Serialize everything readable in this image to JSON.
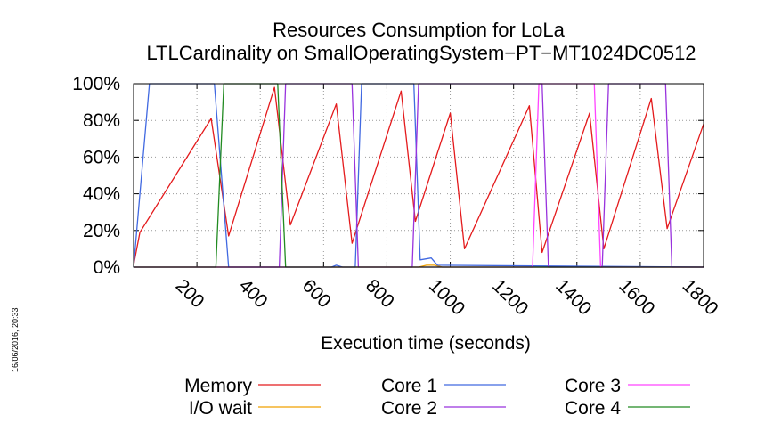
{
  "timestamp": "16/06/2016, 20:33",
  "chart_data": {
    "type": "line",
    "title": "Resources Consumption for LoLa",
    "subtitle": "LTLCardinality on SmallOperatingSystem−PT−MT1024DC0512",
    "xlabel": "Execution time (seconds)",
    "ylabel": "",
    "xlim": [
      0,
      1800
    ],
    "ylim": [
      0,
      100
    ],
    "x_ticks": [
      200,
      400,
      600,
      800,
      1000,
      1200,
      1400,
      1600,
      1800
    ],
    "y_ticks": [
      0,
      20,
      40,
      60,
      80,
      100
    ],
    "y_tick_labels": [
      "0%",
      "20%",
      "40%",
      "60%",
      "80%",
      "100%"
    ],
    "grid": true,
    "legend_position": "bottom",
    "series": [
      {
        "name": "Memory",
        "color": "#e41a1c",
        "points": [
          [
            0,
            1
          ],
          [
            20,
            19
          ],
          [
            245,
            81
          ],
          [
            300,
            17
          ],
          [
            445,
            98
          ],
          [
            495,
            23
          ],
          [
            640,
            89
          ],
          [
            690,
            13
          ],
          [
            845,
            96
          ],
          [
            890,
            25
          ],
          [
            1000,
            84
          ],
          [
            1045,
            10
          ],
          [
            1250,
            88
          ],
          [
            1290,
            8
          ],
          [
            1440,
            84
          ],
          [
            1485,
            10
          ],
          [
            1635,
            92
          ],
          [
            1685,
            21
          ],
          [
            1800,
            78
          ]
        ]
      },
      {
        "name": "I/O wait",
        "color": "#f0a000",
        "points": [
          [
            0,
            0
          ],
          [
            900,
            0
          ],
          [
            925,
            1
          ],
          [
            950,
            1
          ],
          [
            975,
            0
          ],
          [
            1800,
            0
          ]
        ]
      },
      {
        "name": "Core 1",
        "color": "#4169e1",
        "points": [
          [
            0,
            0
          ],
          [
            50,
            100
          ],
          [
            255,
            100
          ],
          [
            300,
            0
          ],
          [
            625,
            0
          ],
          [
            640,
            1
          ],
          [
            660,
            0
          ],
          [
            700,
            0
          ],
          [
            720,
            100
          ],
          [
            885,
            100
          ],
          [
            905,
            4
          ],
          [
            940,
            5
          ],
          [
            960,
            1
          ],
          [
            1800,
            0
          ]
        ]
      },
      {
        "name": "Core 2",
        "color": "#9933dd",
        "points": [
          [
            0,
            0
          ],
          [
            460,
            0
          ],
          [
            480,
            100
          ],
          [
            690,
            100
          ],
          [
            710,
            0
          ],
          [
            880,
            0
          ],
          [
            900,
            100
          ],
          [
            1290,
            100
          ],
          [
            1310,
            0
          ],
          [
            1480,
            0
          ],
          [
            1500,
            100
          ],
          [
            1680,
            100
          ],
          [
            1700,
            0
          ],
          [
            1800,
            0
          ]
        ]
      },
      {
        "name": "Core 3",
        "color": "#ff44ff",
        "points": [
          [
            0,
            0
          ],
          [
            1260,
            0
          ],
          [
            1280,
            100
          ],
          [
            1455,
            100
          ],
          [
            1475,
            0
          ],
          [
            1800,
            0
          ]
        ]
      },
      {
        "name": "Core 4",
        "color": "#228b22",
        "points": [
          [
            0,
            0
          ],
          [
            260,
            0
          ],
          [
            285,
            100
          ],
          [
            455,
            100
          ],
          [
            480,
            0
          ],
          [
            1800,
            0
          ]
        ]
      }
    ]
  }
}
